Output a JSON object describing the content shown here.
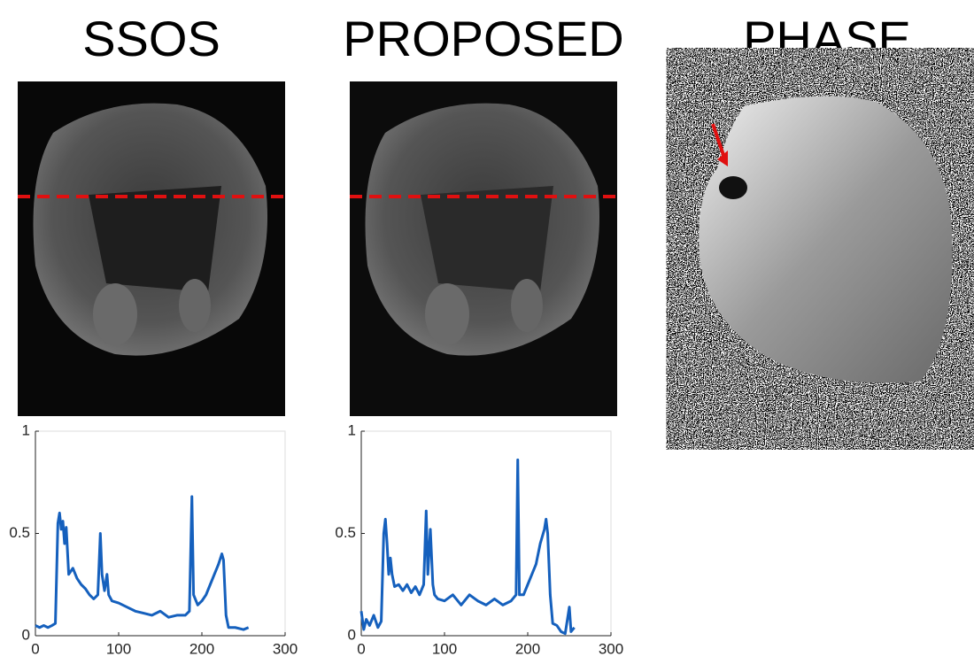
{
  "panels": [
    {
      "title": "SSOS"
    },
    {
      "title": "PROPOSED"
    },
    {
      "title": "PHASE"
    }
  ],
  "chart_data": [
    {
      "type": "line",
      "color": "#1560bd",
      "xlim": [
        0,
        300
      ],
      "ylim": [
        0,
        1
      ],
      "xticks": [
        0,
        100,
        200,
        300
      ],
      "yticks": [
        0,
        0.5,
        1
      ],
      "x": [
        0,
        5,
        10,
        15,
        20,
        24,
        27,
        29,
        31,
        33,
        35,
        37,
        40,
        45,
        50,
        55,
        60,
        65,
        70,
        75,
        78,
        80,
        83,
        86,
        88,
        92,
        100,
        110,
        120,
        130,
        140,
        150,
        160,
        170,
        180,
        185,
        188,
        190,
        195,
        200,
        205,
        210,
        215,
        220,
        224,
        226,
        229,
        232,
        240,
        250,
        256
      ],
      "values": [
        0.05,
        0.04,
        0.05,
        0.04,
        0.05,
        0.06,
        0.55,
        0.6,
        0.52,
        0.56,
        0.45,
        0.53,
        0.3,
        0.33,
        0.28,
        0.25,
        0.23,
        0.2,
        0.18,
        0.2,
        0.5,
        0.3,
        0.22,
        0.3,
        0.2,
        0.17,
        0.16,
        0.14,
        0.12,
        0.11,
        0.1,
        0.12,
        0.09,
        0.1,
        0.1,
        0.12,
        0.68,
        0.2,
        0.15,
        0.17,
        0.2,
        0.25,
        0.3,
        0.35,
        0.4,
        0.37,
        0.1,
        0.04,
        0.04,
        0.03,
        0.04
      ]
    },
    {
      "type": "line",
      "color": "#1560bd",
      "xlim": [
        0,
        300
      ],
      "ylim": [
        0,
        1
      ],
      "xticks": [
        0,
        100,
        200,
        300
      ],
      "yticks": [
        0,
        0.5,
        1
      ],
      "x": [
        0,
        3,
        6,
        10,
        15,
        20,
        24,
        27,
        29,
        31,
        33,
        35,
        37,
        40,
        45,
        50,
        55,
        60,
        65,
        70,
        75,
        78,
        80,
        83,
        86,
        88,
        92,
        100,
        110,
        120,
        130,
        140,
        150,
        160,
        170,
        180,
        186,
        188,
        190,
        195,
        200,
        205,
        210,
        215,
        220,
        222,
        224,
        227,
        230,
        235,
        240,
        245,
        250,
        252,
        256
      ],
      "values": [
        0.12,
        0.03,
        0.08,
        0.05,
        0.1,
        0.04,
        0.07,
        0.5,
        0.57,
        0.45,
        0.3,
        0.38,
        0.3,
        0.24,
        0.25,
        0.22,
        0.25,
        0.21,
        0.24,
        0.2,
        0.25,
        0.61,
        0.3,
        0.52,
        0.25,
        0.2,
        0.18,
        0.17,
        0.2,
        0.15,
        0.2,
        0.17,
        0.15,
        0.18,
        0.15,
        0.17,
        0.2,
        0.86,
        0.2,
        0.2,
        0.25,
        0.3,
        0.35,
        0.45,
        0.52,
        0.57,
        0.5,
        0.2,
        0.06,
        0.05,
        0.02,
        0.01,
        0.14,
        0.02,
        0.04
      ]
    }
  ]
}
